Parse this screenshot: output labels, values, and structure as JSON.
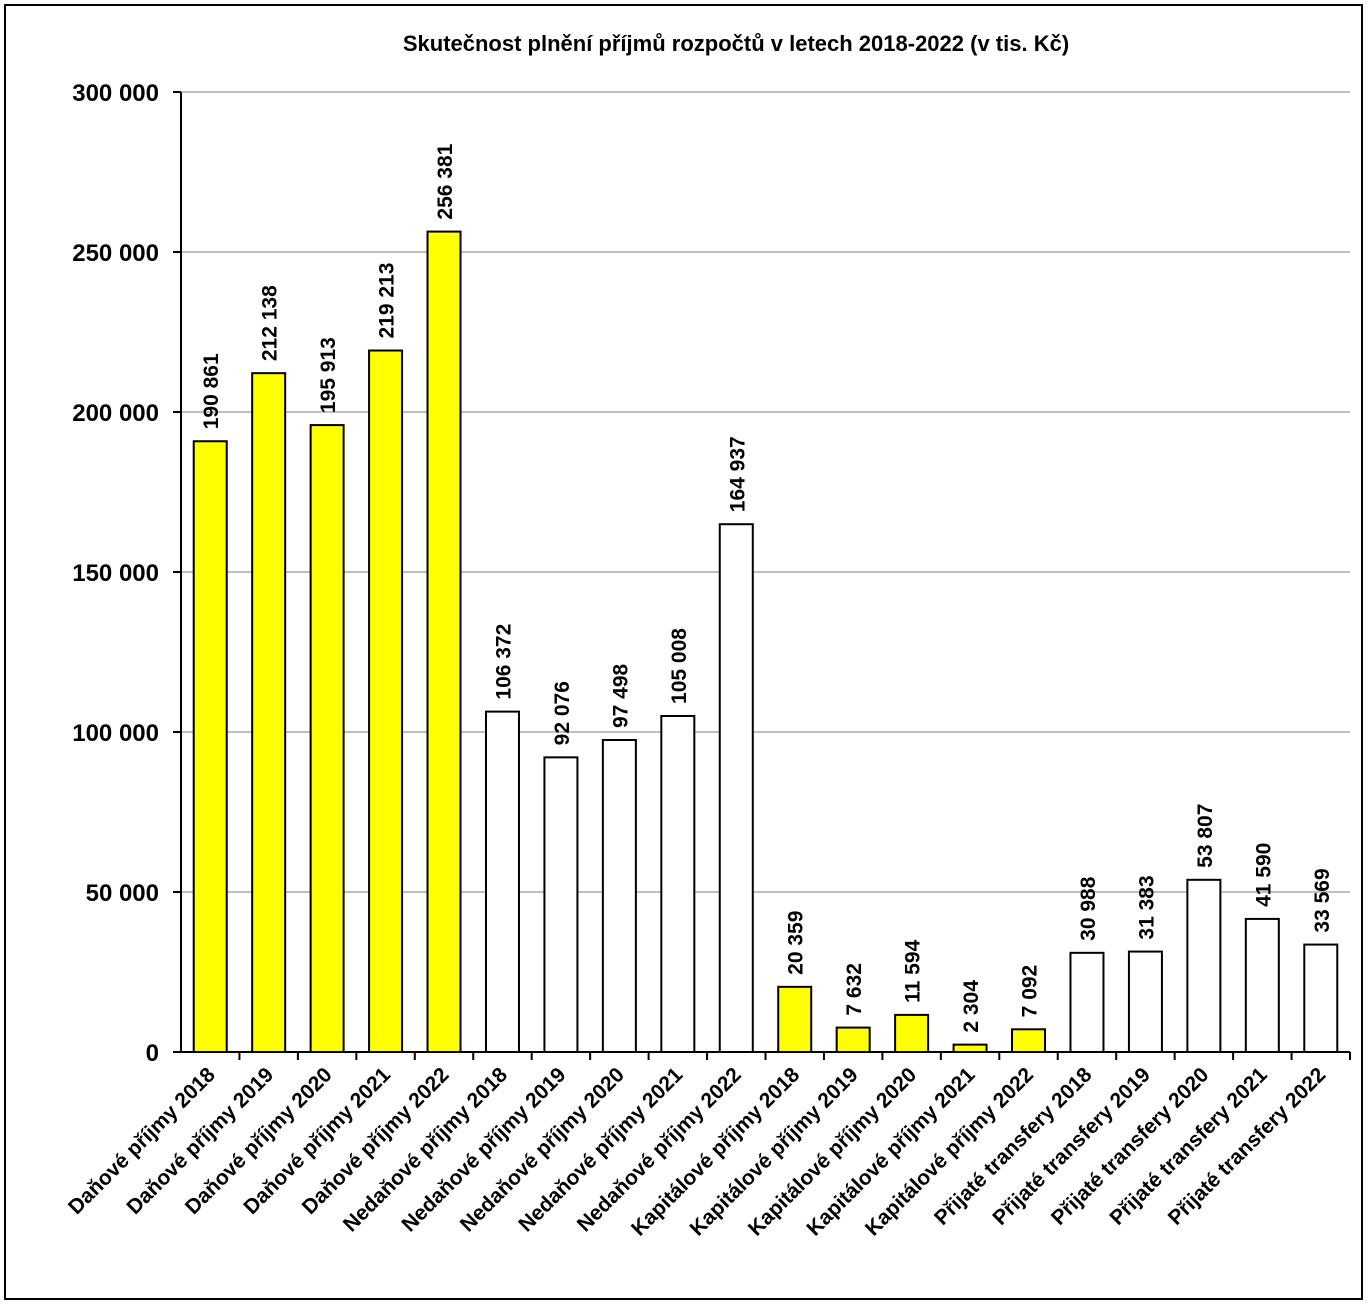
{
  "chart_data": {
    "type": "bar",
    "title": "Skutečnost plnění příjmů rozpočtů v letech 2018-2022 (v tis. Kč)",
    "xlabel": "",
    "ylabel": "",
    "ylim": [
      0,
      300000
    ],
    "y_ticks": [
      0,
      50000,
      100000,
      150000,
      200000,
      250000,
      300000
    ],
    "y_tick_labels": [
      "0",
      "50 000",
      "100 000",
      "150 000",
      "200 000",
      "250 000",
      "300 000"
    ],
    "grid": true,
    "legend": "none",
    "colors": {
      "highlight": "#ffff00",
      "plain": "#ffffff",
      "outline": "#000000",
      "grid": "#808080"
    },
    "categories": [
      "Daňové příjmy 2018",
      "Daňové příjmy 2019",
      "Daňové příjmy 2020",
      "Daňové příjmy 2021",
      "Daňové příjmy 2022",
      "Nedaňové příjmy 2018",
      "Nedaňové příjmy 2019",
      "Nedaňové příjmy 2020",
      "Nedaňové příjmy 2021",
      "Nedaňové příjmy 2022",
      "Kapitálové příjmy 2018",
      "Kapitálové příjmy 2019",
      "Kapitálové příjmy 2020",
      "Kapitálové příjmy 2021",
      "Kapitálové příjmy 2022",
      "Přijaté transfery 2018",
      "Přijaté transfery 2019",
      "Přijaté transfery 2020",
      "Přijaté transfery 2021",
      "Přijaté transfery 2022"
    ],
    "values": [
      190861,
      212138,
      195913,
      219213,
      256381,
      106372,
      92076,
      97498,
      105008,
      164937,
      20359,
      7632,
      11594,
      2304,
      7092,
      30988,
      31383,
      53807,
      41590,
      33569
    ],
    "value_labels": [
      "190 861",
      "212 138",
      "195 913",
      "219 213",
      "256 381",
      "106 372",
      "92 076",
      "97 498",
      "105 008",
      "164 937",
      "20 359",
      "7 632",
      "11 594",
      "2 304",
      "7 092",
      "30 988",
      "31 383",
      "53 807",
      "41 590",
      "33 569"
    ],
    "bar_colors": [
      "#ffff00",
      "#ffff00",
      "#ffff00",
      "#ffff00",
      "#ffff00",
      "#ffffff",
      "#ffffff",
      "#ffffff",
      "#ffffff",
      "#ffffff",
      "#ffff00",
      "#ffff00",
      "#ffff00",
      "#ffff00",
      "#ffff00",
      "#ffffff",
      "#ffffff",
      "#ffffff",
      "#ffffff",
      "#ffffff"
    ]
  }
}
